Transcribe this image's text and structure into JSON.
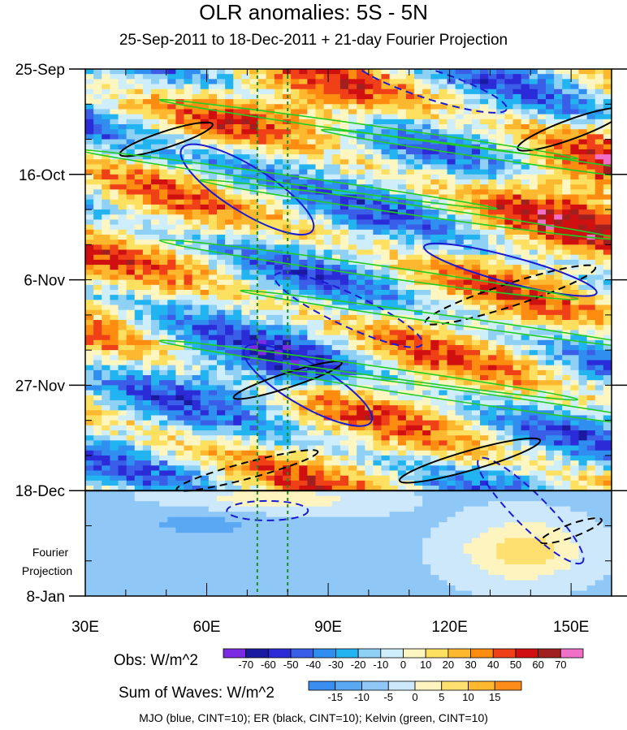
{
  "chart_data": {
    "type": "heatmap",
    "title": "OLR anomalies: 5S - 5N",
    "subtitle": "25-Sep-2011 to 18-Dec-2011 + 21-day Fourier Projection",
    "x_ticks": [
      "30E",
      "60E",
      "90E",
      "120E",
      "150E"
    ],
    "x_tick_values": [
      30,
      60,
      90,
      120,
      150
    ],
    "xlim": [
      30,
      160
    ],
    "y_ticks": [
      "25-Sep",
      "16-Oct",
      "6-Nov",
      "27-Nov",
      "18-Dec",
      "8-Jan"
    ],
    "y_tick_days": [
      0,
      21,
      42,
      63,
      84,
      105
    ],
    "ylim_days": [
      0,
      105
    ],
    "projection_label_line1": "Fourier",
    "projection_label_line2": "Projection",
    "projection_start_day": 84,
    "vertical_reference_lines_lon": [
      72.5,
      80
    ],
    "obs_colorbar": {
      "label": "Obs: W/m^2",
      "levels": [
        "-70",
        "-60",
        "-50",
        "-40",
        "-30",
        "-20",
        "-10",
        "0",
        "10",
        "20",
        "30",
        "40",
        "50",
        "60",
        "70"
      ],
      "colors": [
        "#7b2be2",
        "#1a1aa0",
        "#2b2bd8",
        "#3a5ee8",
        "#2f8ef0",
        "#22b4f0",
        "#8fd0f5",
        "#cfeefb",
        "#fdf6c0",
        "#fde060",
        "#fdb830",
        "#fd8c10",
        "#f04018",
        "#d01010",
        "#a02020",
        "#f070c8"
      ]
    },
    "waves_colorbar": {
      "label": "Sum of Waves: W/m^2",
      "levels": [
        "-15",
        "-10",
        "-5",
        "0",
        "5",
        "10",
        "15"
      ],
      "colors": [
        "#3a8ef0",
        "#5aa8f4",
        "#8fc8f7",
        "#cde8fb",
        "#fdf4c0",
        "#fde070",
        "#fdb830",
        "#fd8c18"
      ]
    },
    "contours": [
      {
        "name": "MJO",
        "color": "#1a1ad0",
        "cint": 10
      },
      {
        "name": "ER",
        "color": "#000000",
        "cint": 10
      },
      {
        "name": "Kelvin",
        "color": "#22cc22",
        "cint": 10
      }
    ]
  },
  "footer": "MJO (blue, CINT=10); ER (black, CINT=10); Kelvin (green, CINT=10)"
}
